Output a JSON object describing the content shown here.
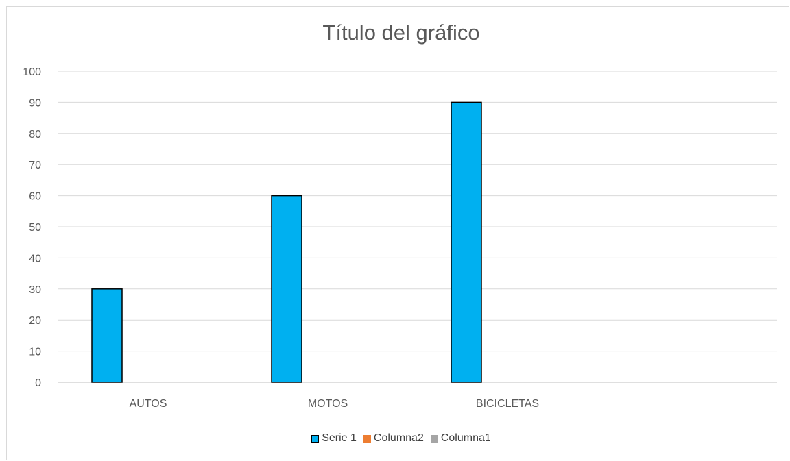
{
  "chart_data": {
    "type": "bar",
    "title": "Título del gráfico",
    "categories": [
      "AUTOS",
      "MOTOS",
      "BICICLETAS"
    ],
    "series": [
      {
        "name": "Serie 1",
        "values": [
          30,
          60,
          90
        ],
        "color": "#00b0f0"
      },
      {
        "name": "Columna2",
        "values": [
          null,
          null,
          null
        ],
        "color": "#ed7d31"
      },
      {
        "name": "Columna1",
        "values": [
          null,
          null,
          null
        ],
        "color": "#a5a5a5"
      }
    ],
    "ylim": [
      0,
      100
    ],
    "yticks": [
      0,
      10,
      20,
      30,
      40,
      50,
      60,
      70,
      80,
      90,
      100
    ],
    "grid": true,
    "legend_position": "bottom"
  }
}
